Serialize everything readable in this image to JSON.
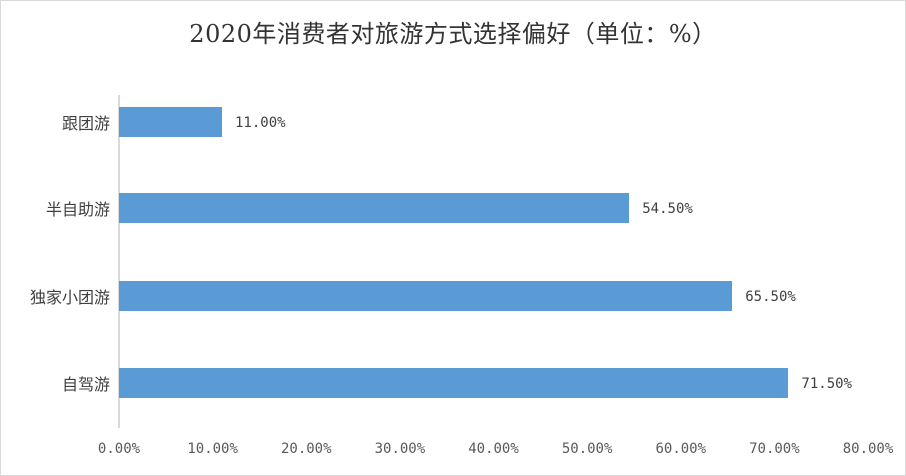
{
  "chart_data": {
    "type": "bar",
    "orientation": "horizontal",
    "title": "2020年消费者对旅游方式选择偏好（单位：%）",
    "xlabel": "",
    "ylabel": "",
    "categories": [
      "跟团游",
      "半自助游",
      "独家小团游",
      "自驾游"
    ],
    "values": [
      11.0,
      54.5,
      65.5,
      71.5
    ],
    "value_labels": [
      "11.00%",
      "54.50%",
      "65.50%",
      "71.50%"
    ],
    "xlim": [
      0,
      80
    ],
    "x_ticks": [
      0,
      10,
      20,
      30,
      40,
      50,
      60,
      70,
      80
    ],
    "x_tick_labels": [
      "0.00%",
      "10.00%",
      "20.00%",
      "30.00%",
      "40.00%",
      "50.00%",
      "60.00%",
      "70.00%",
      "80.00%"
    ],
    "grid": false,
    "legend": "none",
    "bar_color": "#5b9bd5"
  },
  "colors": {
    "bar": "#5b9bd5",
    "axis": "#d9d9d9",
    "text": "#404040"
  }
}
